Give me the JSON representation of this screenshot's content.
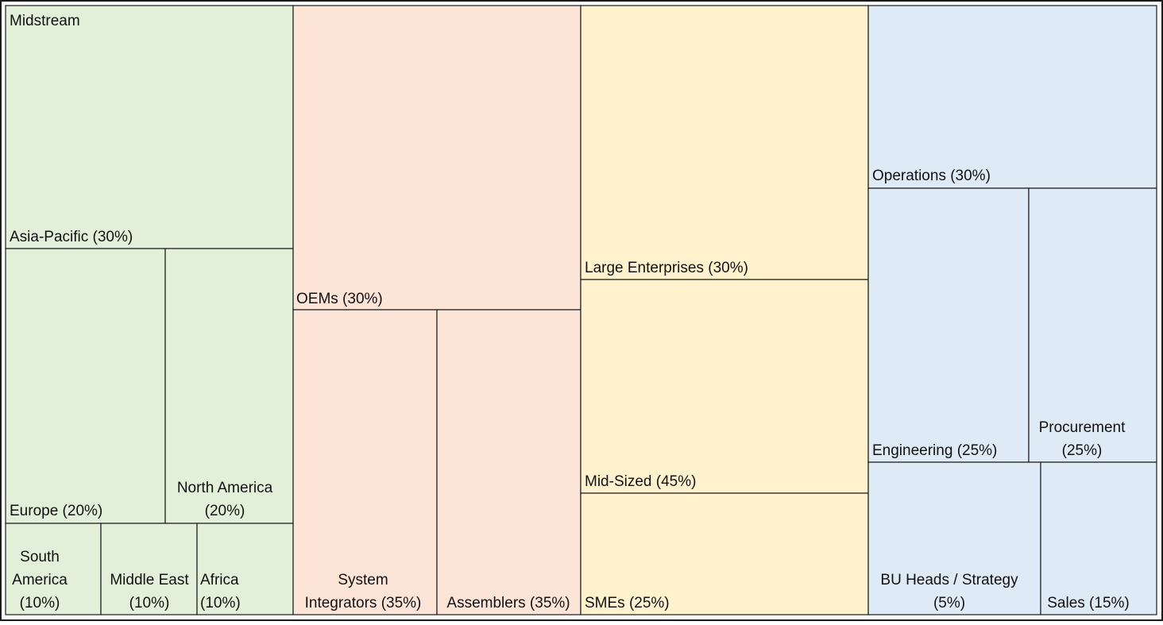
{
  "colors": {
    "green": "#e2efd9",
    "orange": "#fce4d6",
    "yellow": "#fff2cc",
    "blue": "#deeaf6",
    "border": "#1a1a1a"
  },
  "groups": [
    {
      "key": "midstream",
      "label": "Midstream",
      "color": "green",
      "segments": [
        {
          "key": "asia",
          "label": [
            "Asia-Pacific (30%)"
          ]
        },
        {
          "key": "europe",
          "label": [
            "Europe (20%)"
          ]
        },
        {
          "key": "north-america",
          "label": [
            "North America",
            "(20%)"
          ]
        },
        {
          "key": "south-america",
          "label": [
            "South",
            "America",
            "(10%)"
          ]
        },
        {
          "key": "middle-east",
          "label": [
            "Middle East",
            "(10%)"
          ]
        },
        {
          "key": "africa",
          "label": [
            "Africa",
            "(10%)"
          ]
        }
      ]
    },
    {
      "key": "oem",
      "label": "",
      "color": "orange",
      "segments": [
        {
          "key": "oems",
          "label": [
            "OEMs (30%)"
          ]
        },
        {
          "key": "system-integrators",
          "label": [
            "System",
            "Integrators (35%)"
          ]
        },
        {
          "key": "assemblers",
          "label": [
            "Assemblers (35%)"
          ]
        }
      ]
    },
    {
      "key": "enterprise",
      "label": "",
      "color": "yellow",
      "segments": [
        {
          "key": "large-enterprises",
          "label": [
            "Large Enterprises (30%)"
          ]
        },
        {
          "key": "mid-sized",
          "label": [
            "Mid-Sized (45%)"
          ]
        },
        {
          "key": "smes",
          "label": [
            "SMEs (25%)"
          ]
        }
      ]
    },
    {
      "key": "function",
      "label": "",
      "color": "blue",
      "segments": [
        {
          "key": "operations",
          "label": [
            "Operations (30%)"
          ]
        },
        {
          "key": "engineering",
          "label": [
            "Engineering (25%)"
          ]
        },
        {
          "key": "procurement",
          "label": [
            "Procurement",
            "(25%)"
          ]
        },
        {
          "key": "bu-heads",
          "label": [
            "BU Heads / Strategy",
            "(5%)"
          ]
        },
        {
          "key": "sales",
          "label": [
            "Sales (15%)"
          ]
        }
      ]
    }
  ]
}
